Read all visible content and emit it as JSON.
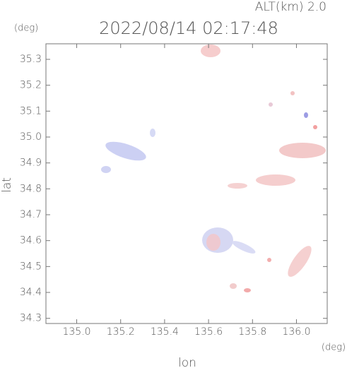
{
  "chart_data": {
    "type": "map",
    "title": "2022/08/14 02:17:48",
    "subtitle": "ALT(km) 2.0",
    "y_unit": "(deg)",
    "x_unit": "(deg)",
    "x_label": "lon",
    "y_label": "lat",
    "xlim": [
      134.86,
      136.14
    ],
    "ylim": [
      34.28,
      35.36
    ],
    "xticks": [
      {
        "value": 135.0,
        "label": "135.0"
      },
      135.2,
      135.4,
      135.6,
      135.8,
      {
        "value": 136.0,
        "label": "136.0"
      }
    ],
    "yticks": [
      34.3,
      34.4,
      34.5,
      34.6,
      34.7,
      34.8,
      34.9,
      {
        "value": 35.0,
        "label": "35.0"
      },
      35.1,
      35.2,
      35.3
    ]
  }
}
